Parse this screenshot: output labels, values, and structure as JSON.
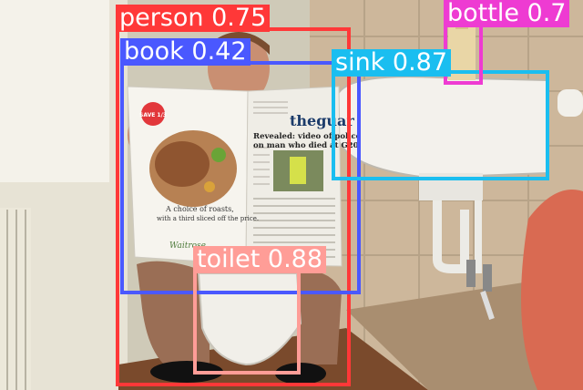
{
  "detections": [
    {
      "label": "person",
      "score": "0.75",
      "text": "person 0.75",
      "color": "#FF3838"
    },
    {
      "label": "book",
      "score": "0.42",
      "text": "book 0.42",
      "color": "#4A58FF"
    },
    {
      "label": "sink",
      "score": "0.87",
      "text": "sink 0.87",
      "color": "#1ABEF0"
    },
    {
      "label": "bottle",
      "score": "0.7",
      "text": "bottle 0.7",
      "color": "#EE3BD2"
    },
    {
      "label": "toilet",
      "score": "0.88",
      "text": "toilet 0.88",
      "color": "#FF9D97"
    }
  ],
  "newspaper": {
    "masthead": "theguar",
    "headline": "Revealed: video of police",
    "subhead": "on man who died at G20",
    "ad_line1": "A choice of roasts,",
    "ad_line2": "with a third sliced off the price.",
    "ad_brand": "Waitrose",
    "ad_badge": "SAVE 1/3"
  }
}
